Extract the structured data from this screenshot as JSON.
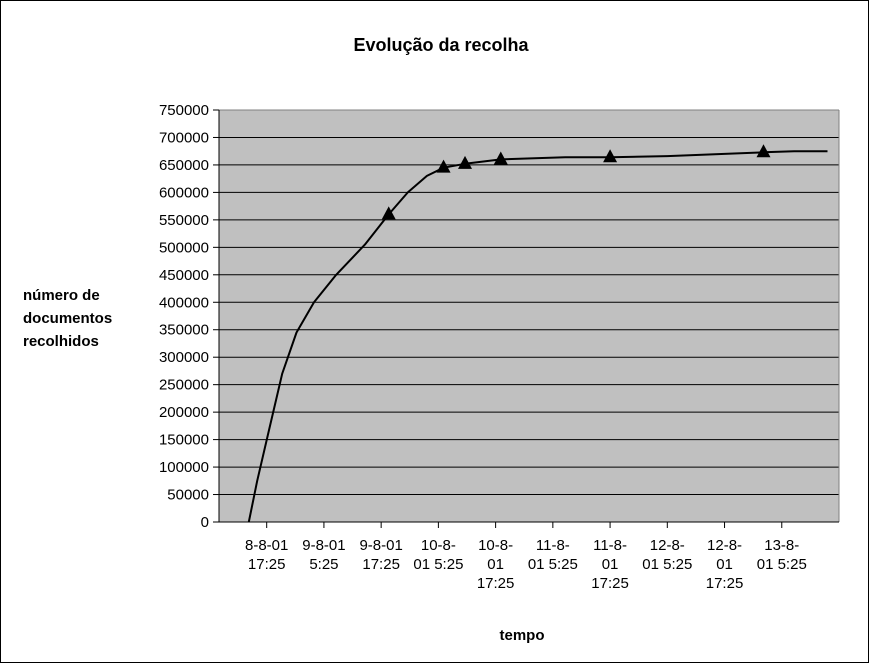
{
  "chart_data": {
    "type": "line",
    "title": "Evolução da recolha",
    "xlabel": "tempo",
    "ylabel": "número de documentos recolhidos",
    "ylabel_lines": [
      "número de",
      "documentos",
      "recolhidos"
    ],
    "ylim": [
      0,
      750000
    ],
    "ytick_step": 50000,
    "yticks": [
      "0",
      "50000",
      "100000",
      "150000",
      "200000",
      "250000",
      "300000",
      "350000",
      "400000",
      "450000",
      "500000",
      "550000",
      "600000",
      "650000",
      "700000",
      "750000"
    ],
    "xlim": [
      "8-8-01 7:25",
      "13-8-01 17:25"
    ],
    "xticks": [
      {
        "t": "8-8-01 17:25",
        "lines": [
          "8-8-01",
          "17:25"
        ]
      },
      {
        "t": "9-8-01 5:25",
        "lines": [
          "9-8-01",
          "5:25"
        ]
      },
      {
        "t": "9-8-01 17:25",
        "lines": [
          "9-8-01",
          "17:25"
        ]
      },
      {
        "t": "10-8-01 5:25",
        "lines": [
          "10-8-",
          "01 5:25"
        ]
      },
      {
        "t": "10-8-01 17:25",
        "lines": [
          "10-8-",
          "01",
          "17:25"
        ]
      },
      {
        "t": "11-8-01 5:25",
        "lines": [
          "11-8-",
          "01 5:25"
        ]
      },
      {
        "t": "11-8-01 17:25",
        "lines": [
          "11-8-",
          "01",
          "17:25"
        ]
      },
      {
        "t": "12-8-01 5:25",
        "lines": [
          "12-8-",
          "01 5:25"
        ]
      },
      {
        "t": "12-8-01 17:25",
        "lines": [
          "12-8-",
          "01",
          "17:25"
        ]
      },
      {
        "t": "13-8-01 5:25",
        "lines": [
          "13-8-",
          "01 5:25"
        ]
      }
    ],
    "grid": true,
    "plot_background": "#c0c0c0",
    "line_color": "#000000",
    "series": [
      {
        "marker": "triangle",
        "points": [
          {
            "t": "8-8-01 13:40",
            "y": 0
          },
          {
            "t": "8-8-01 15:26",
            "y": 75000
          },
          {
            "t": "8-8-01 17:50",
            "y": 165000
          },
          {
            "t": "8-8-01 20:40",
            "y": 270000
          },
          {
            "t": "8-8-01 23:40",
            "y": 345000
          },
          {
            "t": "9-8-01 3:20",
            "y": 400000
          },
          {
            "t": "9-8-01 8:00",
            "y": 450000
          },
          {
            "t": "9-8-01 14:00",
            "y": 505000
          },
          {
            "t": "9-8-01 19:00",
            "y": 560000,
            "marker": true
          },
          {
            "t": "9-8-01 23:00",
            "y": 600000
          },
          {
            "t": "10-8-01 3:00",
            "y": 630000
          },
          {
            "t": "10-8-01 6:30",
            "y": 645000,
            "marker": true
          },
          {
            "t": "10-8-01 11:00",
            "y": 652000,
            "marker": true
          },
          {
            "t": "10-8-01 18:30",
            "y": 660000,
            "marker": true
          },
          {
            "t": "11-8-01 8:00",
            "y": 664000
          },
          {
            "t": "11-8-01 17:25",
            "y": 664000,
            "marker": true
          },
          {
            "t": "12-8-01 5:25",
            "y": 666000
          },
          {
            "t": "12-8-01 17:25",
            "y": 670000
          },
          {
            "t": "13-8-01 1:35",
            "y": 673000,
            "marker": true
          },
          {
            "t": "13-8-01 8:00",
            "y": 675000
          },
          {
            "t": "13-8-01 15:00",
            "y": 675000
          }
        ]
      }
    ]
  }
}
